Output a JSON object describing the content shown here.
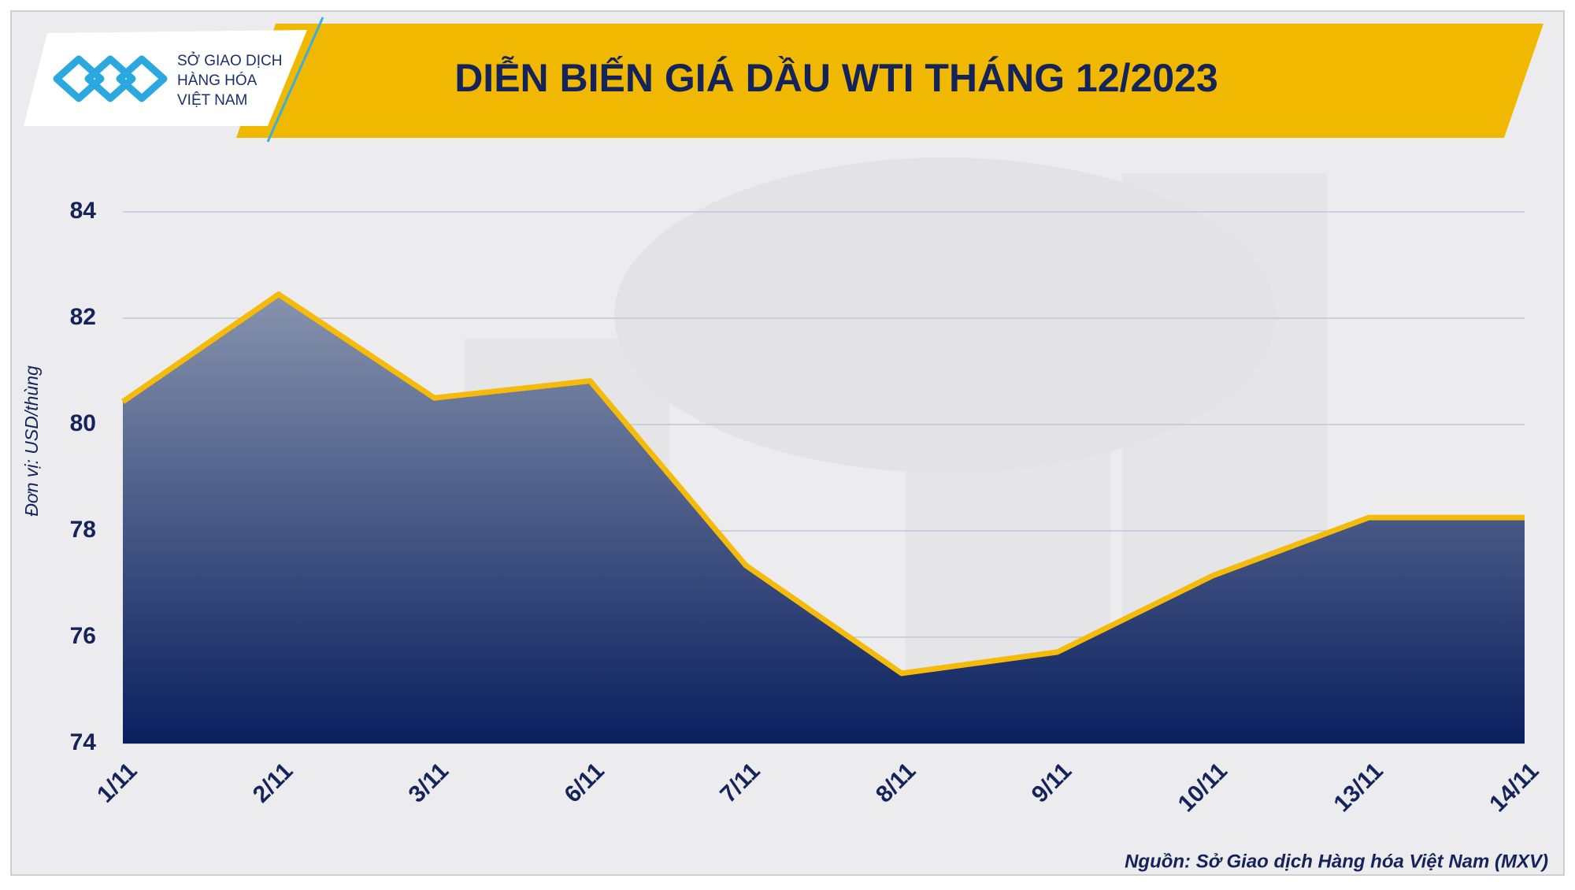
{
  "chart_data": {
    "type": "area",
    "title": "DIỄN BIẾN GIÁ DẦU WTI THÁNG 12/2023",
    "logo_lines": [
      "SỞ GIAO DỊCH",
      "HÀNG HÓA",
      "VIỆT NAM"
    ],
    "y_label": "Đơn vị: USD/thùng",
    "source": "Nguồn: Sở Giao dịch Hàng hóa Việt Nam (MXV)",
    "categories": [
      "1/11",
      "2/11",
      "3/11",
      "6/11",
      "7/11",
      "8/11",
      "9/11",
      "10/11",
      "13/11",
      "14/11"
    ],
    "values": [
      80.43,
      82.45,
      80.5,
      80.82,
      77.35,
      75.32,
      75.72,
      77.16,
      78.25,
      78.25
    ],
    "color": "#f5bb0a",
    "fill_top": "#8793ad",
    "fill_bottom": "#0a1f5e",
    "ylim": [
      74,
      84
    ],
    "yticks": [
      74,
      76,
      78,
      80,
      82,
      84
    ],
    "grid": true
  }
}
